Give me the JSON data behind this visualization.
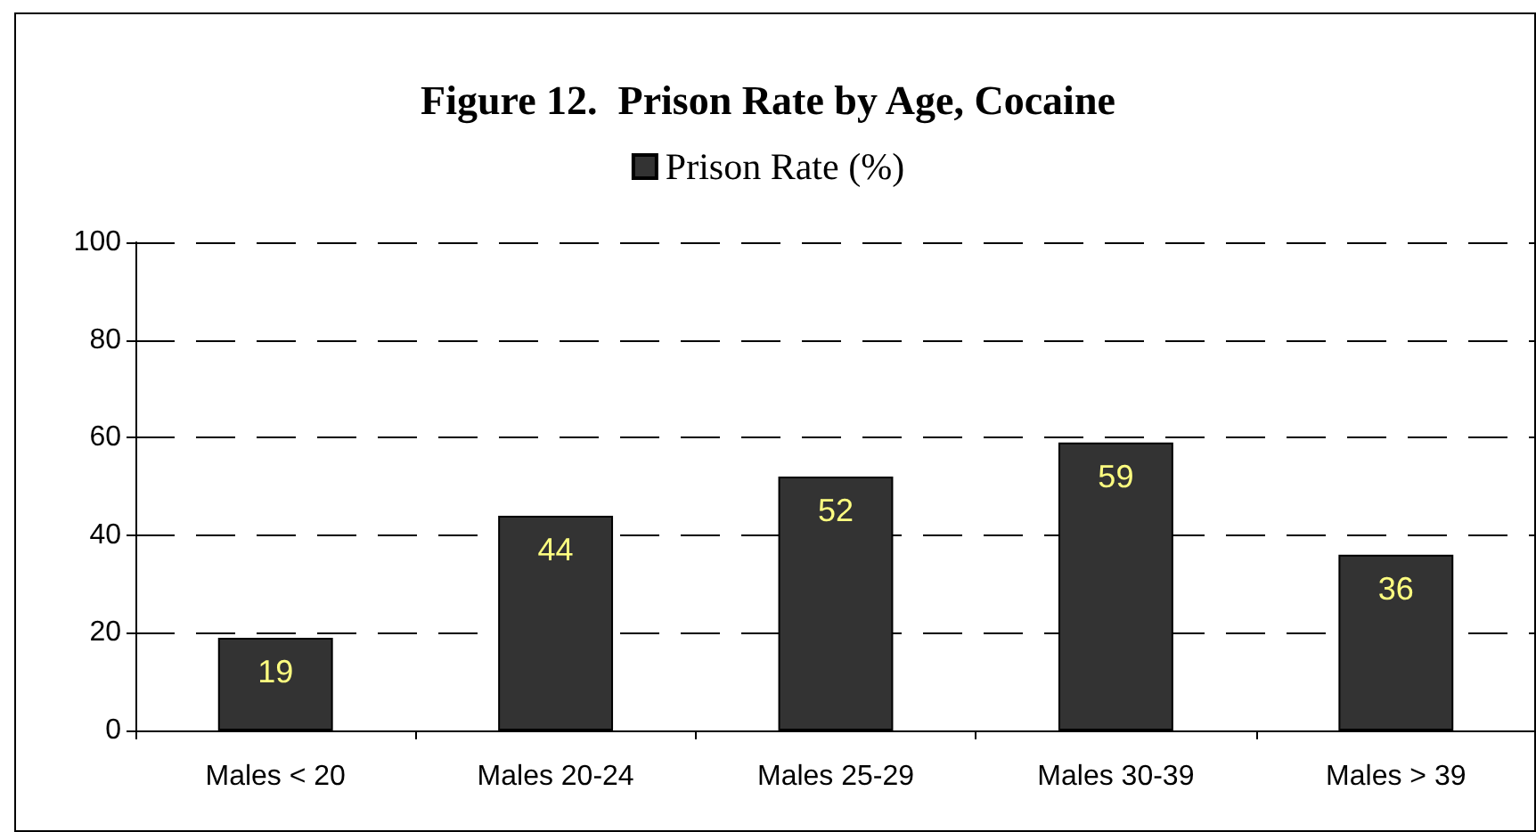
{
  "chart_data": {
    "type": "bar",
    "title": "Figure 12.  Prison Rate by Age, Cocaine",
    "categories": [
      "Males < 20",
      "Males 20-24",
      "Males 25-29",
      "Males 30-39",
      "Males > 39"
    ],
    "series": [
      {
        "name": "Prison Rate (%)",
        "color": "#333333",
        "values": [
          19,
          44,
          52,
          59,
          36
        ]
      }
    ],
    "ylim": [
      0,
      100
    ],
    "yticks": [
      0,
      20,
      40,
      60,
      80,
      100
    ],
    "grid": "y",
    "line_style": "dashed",
    "legend": "top",
    "data_labels": true
  }
}
